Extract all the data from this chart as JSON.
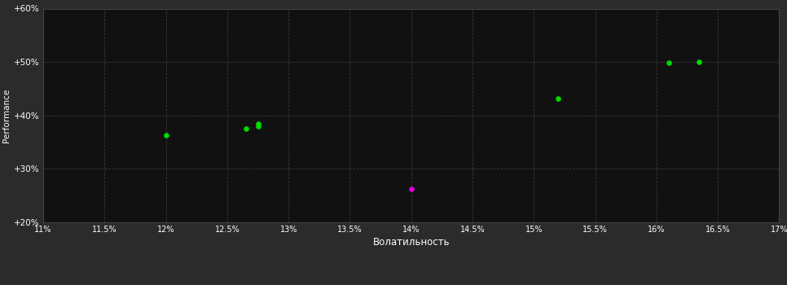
{
  "background_color": "#2b2b2b",
  "plot_bg_color": "#111111",
  "grid_color": "#3a3a3a",
  "text_color": "#ffffff",
  "xlabel": "Волатильность",
  "ylabel": "Performance",
  "xlim": [
    0.11,
    0.17
  ],
  "ylim": [
    0.2,
    0.6
  ],
  "xticks": [
    0.11,
    0.115,
    0.12,
    0.125,
    0.13,
    0.135,
    0.14,
    0.145,
    0.15,
    0.155,
    0.16,
    0.165,
    0.17
  ],
  "yticks": [
    0.2,
    0.3,
    0.4,
    0.5,
    0.6
  ],
  "xtick_labels": [
    "11%",
    "11.5%",
    "12%",
    "12.5%",
    "13%",
    "13.5%",
    "14%",
    "14.5%",
    "15%",
    "15.5%",
    "16%",
    "16.5%",
    "17%"
  ],
  "ytick_labels": [
    "+20%",
    "+30%",
    "+40%",
    "+50%",
    "+60%"
  ],
  "green_points": [
    [
      0.12,
      0.363
    ],
    [
      0.1265,
      0.375
    ],
    [
      0.1275,
      0.38
    ],
    [
      0.1275,
      0.385
    ],
    [
      0.152,
      0.432
    ],
    [
      0.161,
      0.498
    ],
    [
      0.1635,
      0.5
    ]
  ],
  "magenta_points": [
    [
      0.14,
      0.263
    ]
  ],
  "green_color": "#00dd00",
  "magenta_color": "#dd00dd",
  "point_size": 14,
  "figsize": [
    9.66,
    3.5
  ],
  "dpi": 100
}
